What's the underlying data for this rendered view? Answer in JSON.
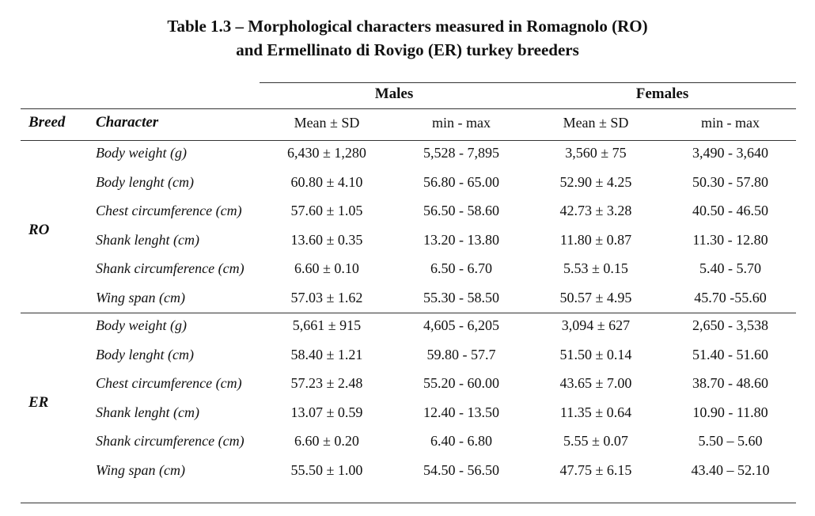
{
  "title": {
    "line1": "Table 1.3 – Morphological characters measured in Romagnolo (RO)",
    "line2": "and Ermellinato di Rovigo (ER) turkey breeders"
  },
  "header": {
    "males": "Males",
    "females": "Females",
    "breed": "Breed",
    "character": "Character",
    "mean_sd_m": "Mean ± SD",
    "minmax_m": "min - max",
    "mean_sd_f": "Mean ± SD",
    "minmax_f": "min - max"
  },
  "groups": [
    {
      "breed": "RO",
      "rows": [
        {
          "character": "Body weight (g)",
          "m_mean": "6,430 ± 1,280",
          "m_range": "5,528 - 7,895",
          "f_mean": "3,560 ± 75",
          "f_range": "3,490 - 3,640"
        },
        {
          "character": "Body lenght (cm)",
          "m_mean": "60.80 ± 4.10",
          "m_range": "56.80 - 65.00",
          "f_mean": "52.90 ± 4.25",
          "f_range": "50.30 - 57.80"
        },
        {
          "character": "Chest circumference (cm)",
          "m_mean": "57.60 ± 1.05",
          "m_range": "56.50 - 58.60",
          "f_mean": "42.73 ± 3.28",
          "f_range": "40.50 - 46.50"
        },
        {
          "character": "Shank lenght (cm)",
          "m_mean": "13.60 ± 0.35",
          "m_range": "13.20 - 13.80",
          "f_mean": "11.80 ± 0.87",
          "f_range": "11.30 - 12.80"
        },
        {
          "character": "Shank circumference (cm)",
          "m_mean": "6.60 ± 0.10",
          "m_range": "6.50 - 6.70",
          "f_mean": "5.53 ± 0.15",
          "f_range": "5.40 - 5.70"
        },
        {
          "character": "Wing span (cm)",
          "m_mean": "57.03 ± 1.62",
          "m_range": "55.30 - 58.50",
          "f_mean": "50.57 ± 4.95",
          "f_range": "45.70 -55.60"
        }
      ]
    },
    {
      "breed": "ER",
      "rows": [
        {
          "character": "Body weight (g)",
          "m_mean": "5,661 ± 915",
          "m_range": "4,605 - 6,205",
          "f_mean": "3,094 ± 627",
          "f_range": "2,650 - 3,538"
        },
        {
          "character": "Body lenght (cm)",
          "m_mean": "58.40 ± 1.21",
          "m_range": "59.80 - 57.7",
          "f_mean": "51.50 ± 0.14",
          "f_range": "51.40 - 51.60"
        },
        {
          "character": "Chest circumference (cm)",
          "m_mean": "57.23 ± 2.48",
          "m_range": "55.20 - 60.00",
          "f_mean": "43.65 ± 7.00",
          "f_range": "38.70 - 48.60"
        },
        {
          "character": "Shank lenght (cm)",
          "m_mean": "13.07 ± 0.59",
          "m_range": "12.40 - 13.50",
          "f_mean": "11.35 ± 0.64",
          "f_range": "10.90 - 11.80"
        },
        {
          "character": "Shank circumference (cm)",
          "m_mean": "6.60 ± 0.20",
          "m_range": "6.40 - 6.80",
          "f_mean": "5.55 ± 0.07",
          "f_range": "5.50 – 5.60"
        },
        {
          "character": "Wing span (cm)",
          "m_mean": "55.50 ± 1.00",
          "m_range": "54.50 - 56.50",
          "f_mean": "47.75 ± 6.15",
          "f_range": "43.40 – 52.10"
        }
      ]
    }
  ]
}
